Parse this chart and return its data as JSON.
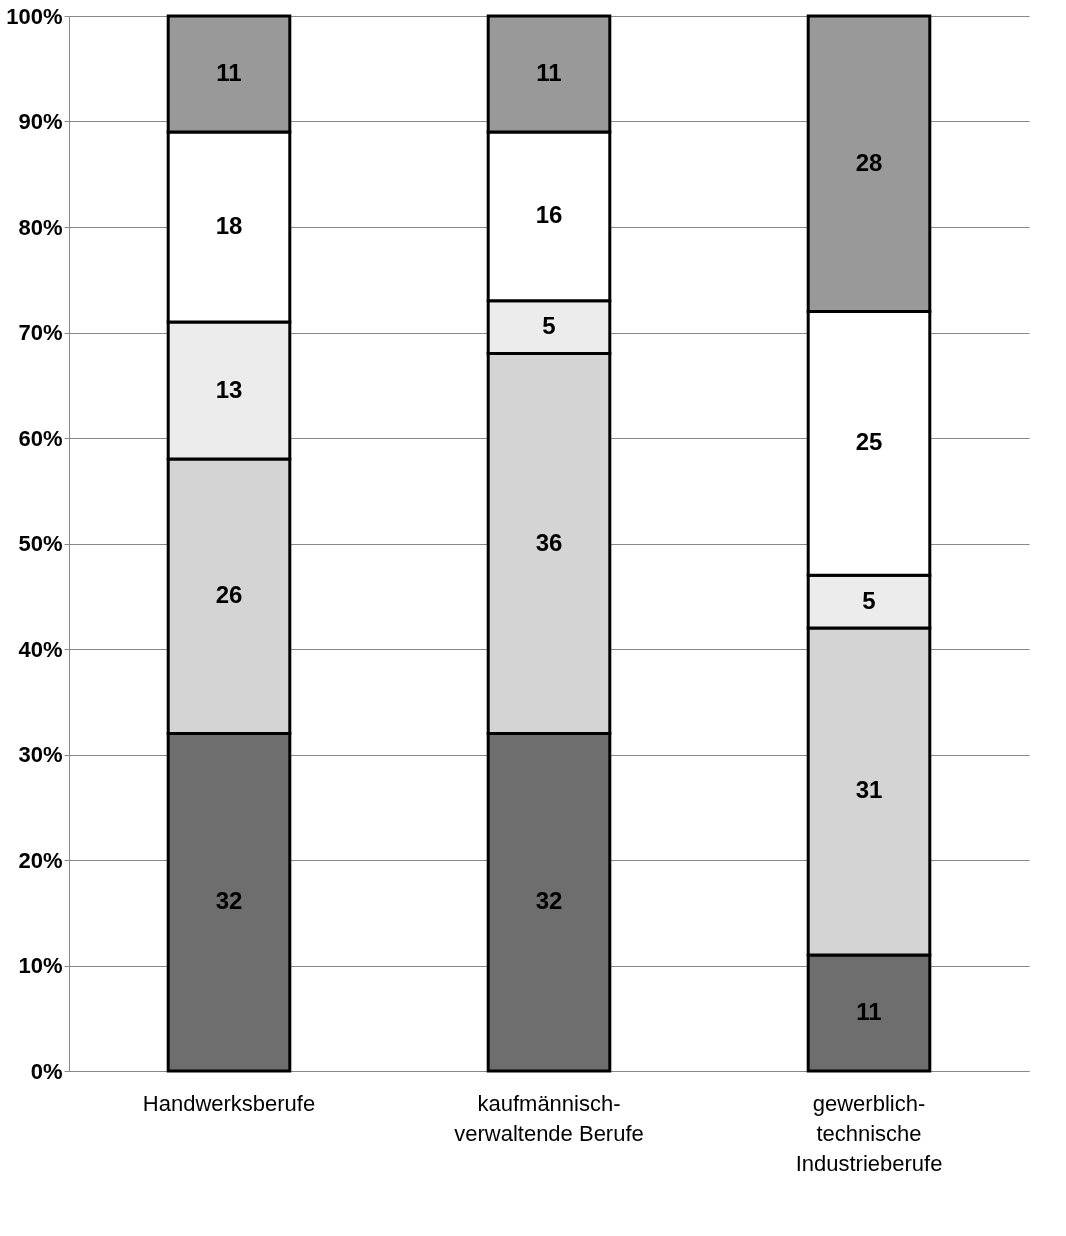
{
  "chart_data": {
    "type": "bar",
    "stacked": true,
    "categories": [
      "Handwerksberufe",
      "kaufmännisch-\nverwaltende Berufe",
      "gewerblich-\ntechnische\nIndustrieberufe"
    ],
    "series": [
      {
        "color": "#6e6e6e",
        "values": [
          32,
          32,
          11
        ]
      },
      {
        "color": "#d4d4d4",
        "values": [
          26,
          36,
          31
        ]
      },
      {
        "color": "#ececec",
        "values": [
          13,
          5,
          5
        ]
      },
      {
        "color": "#ffffff",
        "values": [
          18,
          16,
          25
        ]
      },
      {
        "color": "#999999",
        "values": [
          11,
          11,
          28
        ]
      }
    ],
    "ylim": [
      0,
      100
    ],
    "yticks": [
      {
        "value": 0,
        "label": "0%"
      },
      {
        "value": 10,
        "label": "10%"
      },
      {
        "value": 20,
        "label": "20%"
      },
      {
        "value": 30,
        "label": "30%"
      },
      {
        "value": 40,
        "label": "40%"
      },
      {
        "value": 50,
        "label": "50%"
      },
      {
        "value": 60,
        "label": "60%"
      },
      {
        "value": 70,
        "label": "70%"
      },
      {
        "value": 80,
        "label": "80%"
      },
      {
        "value": 90,
        "label": "90%"
      },
      {
        "value": 100,
        "label": "100%"
      }
    ],
    "grid": "y",
    "data_labels": true
  }
}
